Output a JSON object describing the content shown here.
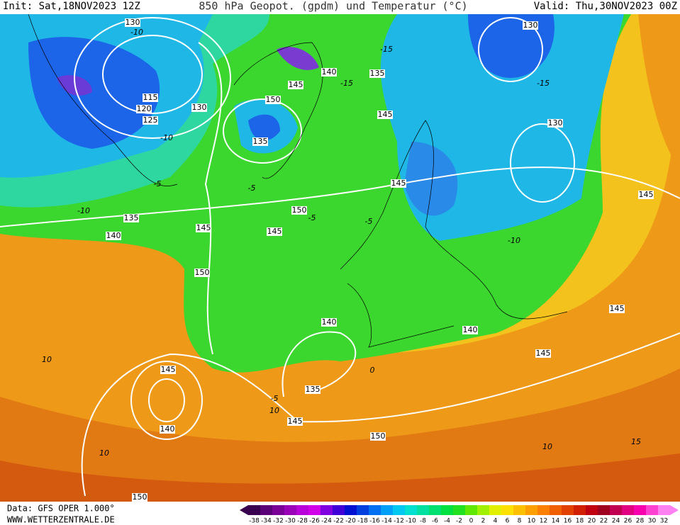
{
  "header": {
    "init": "Init: Sat,18NOV2023 12Z",
    "title": "850 hPa Geopot. (gpdm) und Temperatur (°C)",
    "valid": "Valid: Thu,30NOV2023 00Z"
  },
  "map": {
    "geopotential_labels": [
      "130",
      "115",
      "120",
      "125",
      "130",
      "140",
      "145",
      "150",
      "135",
      "135",
      "145",
      "130",
      "130",
      "145",
      "150",
      "135",
      "140",
      "145",
      "145",
      "150",
      "145",
      "145",
      "140",
      "140",
      "145",
      "145",
      "135",
      "140",
      "145",
      "150",
      "150"
    ],
    "temperature_labels": [
      "-10",
      "-15",
      "-15",
      "-15",
      "-10",
      "-5",
      "-10",
      "-5",
      "-5",
      "-10",
      "-5",
      "10",
      "-5",
      "10",
      "10",
      "10",
      "15",
      "0"
    ]
  },
  "footer": {
    "data_source": "Data: GFS OPER 1.000°",
    "website": "WWW.WETTERZENTRALE.DE"
  },
  "colorbar": {
    "labels": [
      -38,
      -34,
      -32,
      -30,
      -28,
      -26,
      -24,
      -22,
      -20,
      -18,
      -16,
      -14,
      -12,
      -10,
      -8,
      -6,
      -4,
      -2,
      0,
      2,
      4,
      6,
      8,
      10,
      12,
      14,
      16,
      18,
      20,
      22,
      24,
      26,
      28,
      30,
      32
    ]
  }
}
